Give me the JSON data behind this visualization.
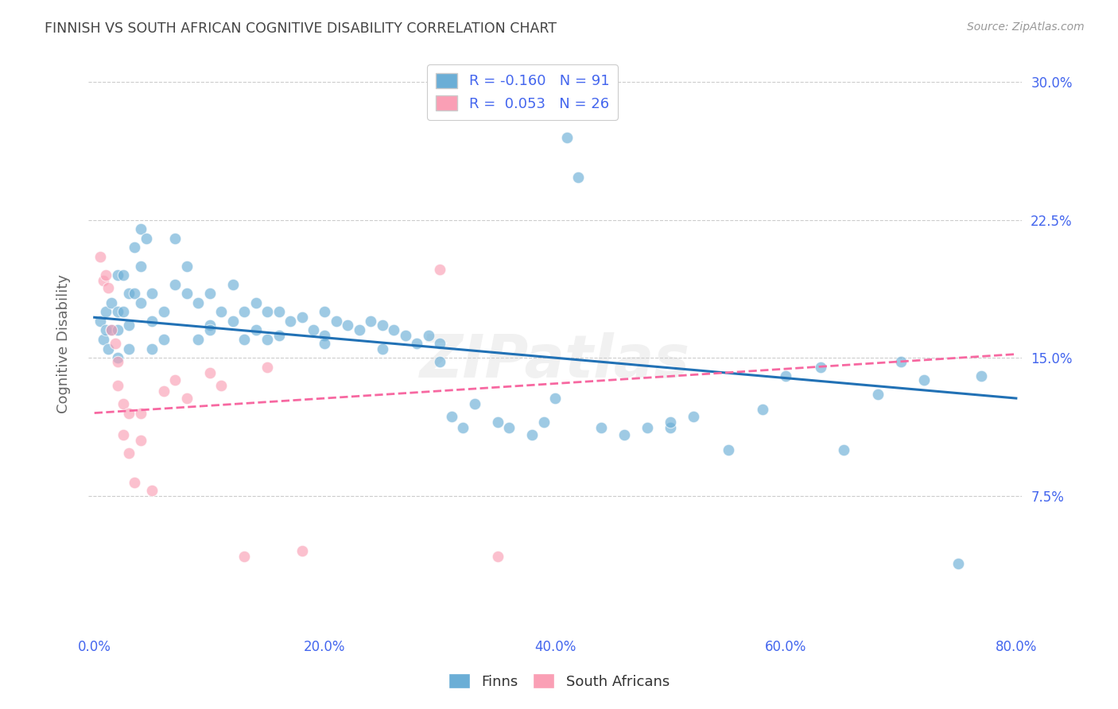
{
  "title": "FINNISH VS SOUTH AFRICAN COGNITIVE DISABILITY CORRELATION CHART",
  "source": "Source: ZipAtlas.com",
  "ylabel": "Cognitive Disability",
  "xlim": [
    -0.005,
    0.805
  ],
  "ylim": [
    0.0,
    0.315
  ],
  "xticks": [
    0.0,
    0.2,
    0.4,
    0.6,
    0.8
  ],
  "yticks": [
    0.075,
    0.15,
    0.225,
    0.3
  ],
  "xticklabels": [
    "0.0%",
    "20.0%",
    "40.0%",
    "60.0%",
    "80.0%"
  ],
  "yticklabels_right": [
    "7.5%",
    "15.0%",
    "22.5%",
    "30.0%"
  ],
  "finns_color": "#6baed6",
  "sa_color": "#fa9fb5",
  "finns_R": -0.16,
  "finns_N": 91,
  "sa_R": 0.053,
  "sa_N": 26,
  "finns_line_color": "#2171b5",
  "sa_line_color": "#f768a1",
  "background_color": "#ffffff",
  "grid_color": "#cccccc",
  "title_color": "#444444",
  "axis_label_color": "#666666",
  "tick_color": "#4466ee",
  "watermark": "ZIPatlas",
  "finns_x": [
    0.005,
    0.008,
    0.01,
    0.01,
    0.012,
    0.015,
    0.015,
    0.02,
    0.02,
    0.02,
    0.02,
    0.025,
    0.025,
    0.03,
    0.03,
    0.03,
    0.035,
    0.035,
    0.04,
    0.04,
    0.04,
    0.045,
    0.05,
    0.05,
    0.05,
    0.06,
    0.06,
    0.07,
    0.07,
    0.08,
    0.08,
    0.09,
    0.09,
    0.1,
    0.1,
    0.11,
    0.12,
    0.12,
    0.13,
    0.13,
    0.14,
    0.14,
    0.15,
    0.15,
    0.16,
    0.16,
    0.17,
    0.18,
    0.19,
    0.2,
    0.2,
    0.21,
    0.22,
    0.23,
    0.24,
    0.25,
    0.25,
    0.26,
    0.27,
    0.28,
    0.29,
    0.3,
    0.31,
    0.32,
    0.33,
    0.35,
    0.36,
    0.38,
    0.39,
    0.41,
    0.42,
    0.44,
    0.46,
    0.48,
    0.5,
    0.52,
    0.55,
    0.58,
    0.6,
    0.63,
    0.65,
    0.68,
    0.7,
    0.72,
    0.75,
    0.77,
    0.1,
    0.2,
    0.3,
    0.4,
    0.5
  ],
  "finns_y": [
    0.17,
    0.16,
    0.175,
    0.165,
    0.155,
    0.18,
    0.165,
    0.195,
    0.175,
    0.165,
    0.15,
    0.195,
    0.175,
    0.185,
    0.168,
    0.155,
    0.21,
    0.185,
    0.22,
    0.2,
    0.18,
    0.215,
    0.185,
    0.17,
    0.155,
    0.175,
    0.16,
    0.215,
    0.19,
    0.2,
    0.185,
    0.18,
    0.16,
    0.185,
    0.168,
    0.175,
    0.19,
    0.17,
    0.175,
    0.16,
    0.18,
    0.165,
    0.175,
    0.16,
    0.175,
    0.162,
    0.17,
    0.172,
    0.165,
    0.175,
    0.162,
    0.17,
    0.168,
    0.165,
    0.17,
    0.168,
    0.155,
    0.165,
    0.162,
    0.158,
    0.162,
    0.158,
    0.118,
    0.112,
    0.125,
    0.115,
    0.112,
    0.108,
    0.115,
    0.27,
    0.248,
    0.112,
    0.108,
    0.112,
    0.112,
    0.118,
    0.1,
    0.122,
    0.14,
    0.145,
    0.1,
    0.13,
    0.148,
    0.138,
    0.038,
    0.14,
    0.165,
    0.158,
    0.148,
    0.128,
    0.115
  ],
  "sa_x": [
    0.005,
    0.008,
    0.01,
    0.012,
    0.015,
    0.018,
    0.02,
    0.02,
    0.025,
    0.025,
    0.03,
    0.03,
    0.035,
    0.04,
    0.04,
    0.05,
    0.06,
    0.07,
    0.08,
    0.1,
    0.11,
    0.13,
    0.15,
    0.18,
    0.3,
    0.35
  ],
  "sa_y": [
    0.205,
    0.192,
    0.195,
    0.188,
    0.165,
    0.158,
    0.148,
    0.135,
    0.125,
    0.108,
    0.12,
    0.098,
    0.082,
    0.12,
    0.105,
    0.078,
    0.132,
    0.138,
    0.128,
    0.142,
    0.135,
    0.042,
    0.145,
    0.045,
    0.198,
    0.042
  ],
  "finns_trend_x0": 0.0,
  "finns_trend_x1": 0.8,
  "finns_trend_y0": 0.172,
  "finns_trend_y1": 0.128,
  "sa_trend_x0": 0.0,
  "sa_trend_x1": 0.8,
  "sa_trend_y0": 0.12,
  "sa_trend_y1": 0.152
}
